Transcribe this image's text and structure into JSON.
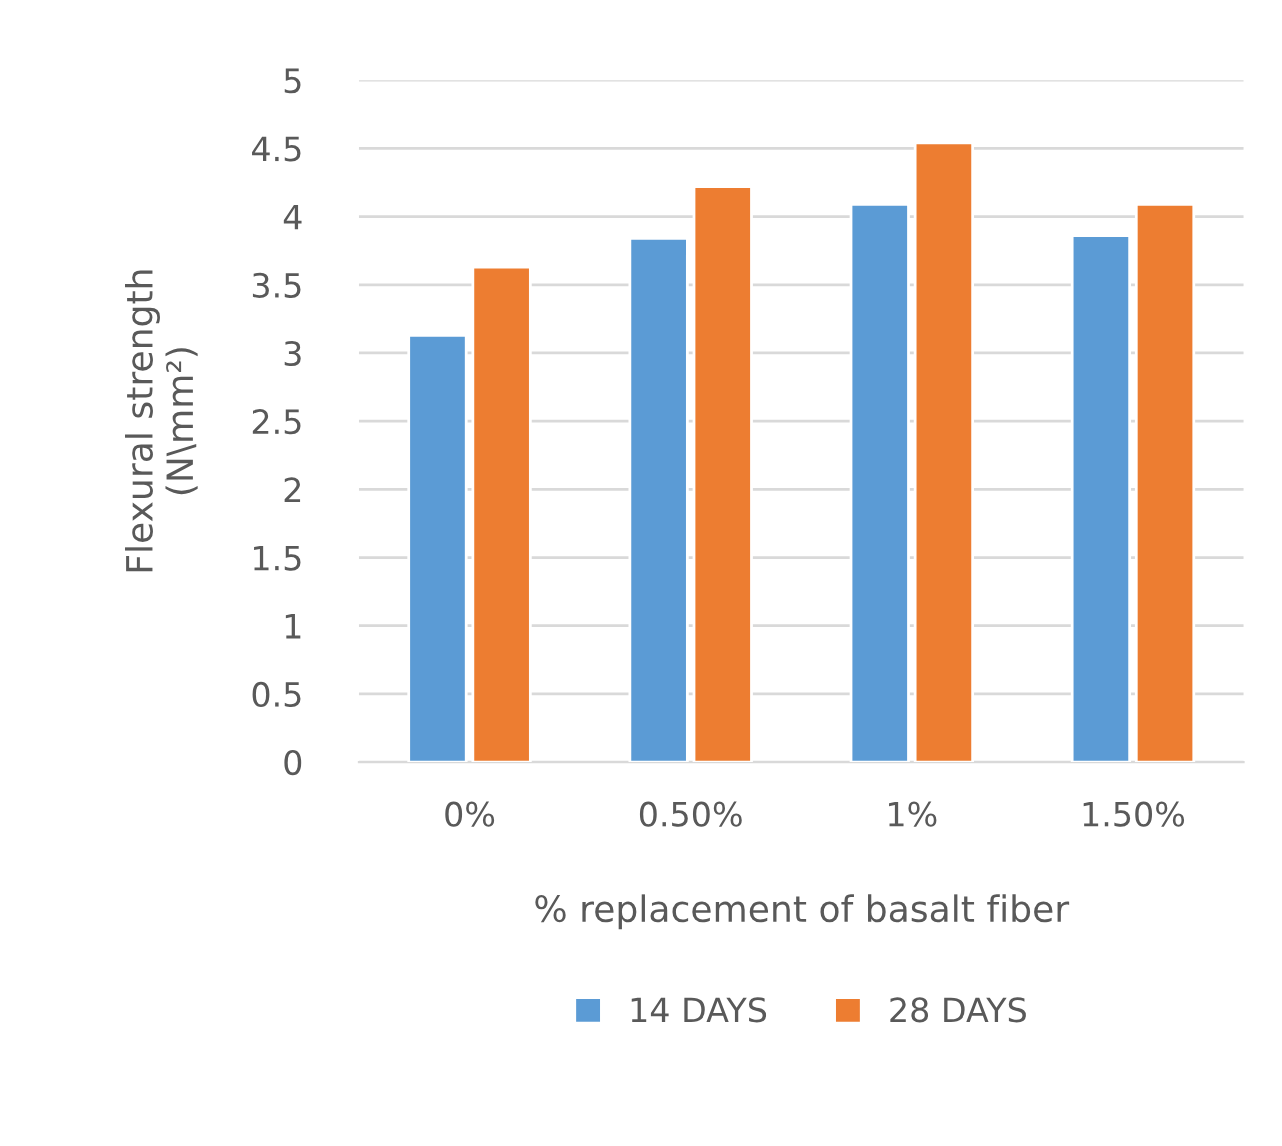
{
  "chart_data": {
    "type": "bar",
    "xlabel": "% replacement of basalt fiber",
    "ylabel": "Flexural strength\n(N\\mm²)",
    "categories": [
      "0%",
      "0.50%",
      "1%",
      "1.50%"
    ],
    "series": [
      {
        "name": "14 DAYS",
        "color": "#5b9bd5",
        "values": [
          3.13,
          3.84,
          4.09,
          3.86
        ]
      },
      {
        "name": "28 DAYS",
        "color": "#ed7d31",
        "values": [
          3.63,
          4.22,
          4.54,
          4.09
        ]
      }
    ],
    "ylim": [
      0,
      5
    ],
    "yticks": [
      0,
      {
        "value": 0.5,
        "label": "0.5"
      },
      1,
      {
        "value": 1.5,
        "label": "1.5"
      },
      2,
      {
        "value": 2.5,
        "label": "2.5"
      },
      3,
      {
        "value": 3.5,
        "label": "3.5"
      },
      4,
      {
        "value": 4.5,
        "label": "4.5"
      },
      5
    ],
    "grid": "y",
    "legend": "bottom"
  }
}
